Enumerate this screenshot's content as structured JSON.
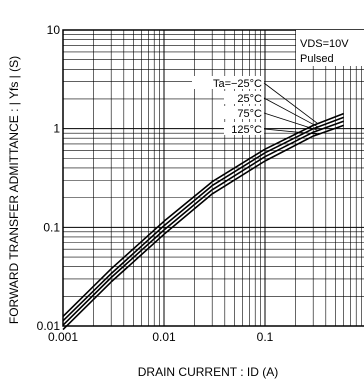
{
  "chart_data": {
    "type": "line",
    "xscale": "log",
    "yscale": "log",
    "xlim": [
      0.001,
      1
    ],
    "ylim": [
      0.01,
      10
    ],
    "grid": true,
    "xlabel": "DRAIN CURRENT : ID (A)",
    "ylabel": "FORWARD TRANSFER ADMITTANCE : | Yfs | (S)",
    "x_ticks": [
      "0.001",
      "0.01",
      "0.1"
    ],
    "y_ticks": [
      "10",
      "1",
      "0.1",
      "0.01"
    ],
    "annotations": {
      "vds": "VDS=10V",
      "pulsed": "Pulsed"
    },
    "series": [
      {
        "name": "Ta=−25°C",
        "x": [
          0.001,
          0.003,
          0.01,
          0.03,
          0.1,
          0.3,
          0.6
        ],
        "y": [
          0.0125,
          0.038,
          0.115,
          0.29,
          0.62,
          1.08,
          1.42
        ]
      },
      {
        "name": "25°C",
        "x": [
          0.001,
          0.003,
          0.01,
          0.03,
          0.1,
          0.3,
          0.6
        ],
        "y": [
          0.0113,
          0.034,
          0.104,
          0.265,
          0.57,
          1.0,
          1.3
        ]
      },
      {
        "name": "75°C",
        "x": [
          0.001,
          0.003,
          0.01,
          0.03,
          0.1,
          0.3,
          0.6
        ],
        "y": [
          0.0102,
          0.031,
          0.094,
          0.24,
          0.52,
          0.92,
          1.19
        ]
      },
      {
        "name": "125°C",
        "x": [
          0.001,
          0.003,
          0.01,
          0.03,
          0.1,
          0.3,
          0.6
        ],
        "y": [
          0.0092,
          0.028,
          0.085,
          0.218,
          0.47,
          0.84,
          1.08
        ]
      }
    ]
  }
}
